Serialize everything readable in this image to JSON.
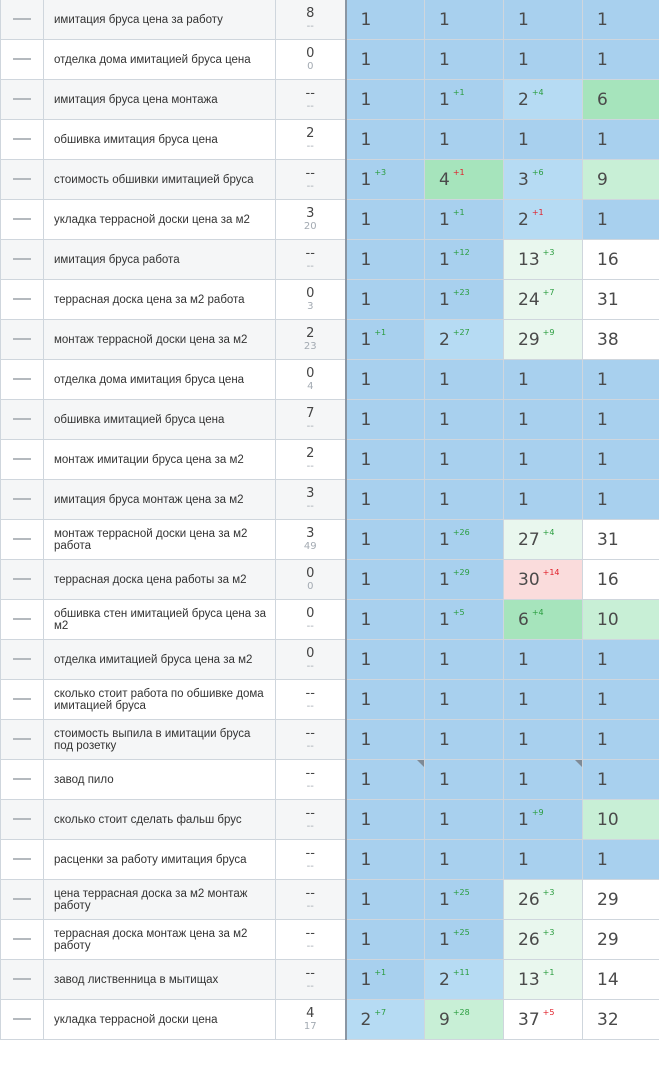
{
  "colors": {
    "top1": "#a8d0ee",
    "top3": "#b6dbf3",
    "top10": "#a6e4bc",
    "top10_light": "#c8efd6",
    "top30": "#e9f7ee",
    "worse": "#fadcdc",
    "none": "#ffffff"
  },
  "rows": [
    {
      "keyword": "имитация бруса цена за работу",
      "freq": "8",
      "freq2": "--",
      "positions": [
        {
          "v": "1",
          "d": "",
          "dir": "",
          "c": "top1"
        },
        {
          "v": "1",
          "d": "",
          "dir": "",
          "c": "top1"
        },
        {
          "v": "1",
          "d": "",
          "dir": "",
          "c": "top1"
        },
        {
          "v": "1",
          "d": "",
          "dir": "",
          "c": "top1"
        }
      ]
    },
    {
      "keyword": "отделка дома имитацией бруса цена",
      "freq": "0",
      "freq2": "0",
      "positions": [
        {
          "v": "1",
          "d": "",
          "dir": "",
          "c": "top1"
        },
        {
          "v": "1",
          "d": "",
          "dir": "",
          "c": "top1"
        },
        {
          "v": "1",
          "d": "",
          "dir": "",
          "c": "top1"
        },
        {
          "v": "1",
          "d": "",
          "dir": "",
          "c": "top1"
        }
      ]
    },
    {
      "keyword": "имитация бруса цена монтажа",
      "freq": "--",
      "freq2": "--",
      "positions": [
        {
          "v": "1",
          "d": "",
          "dir": "",
          "c": "top1"
        },
        {
          "v": "1",
          "d": "+1",
          "dir": "up",
          "c": "top1"
        },
        {
          "v": "2",
          "d": "+4",
          "dir": "up",
          "c": "top3"
        },
        {
          "v": "6",
          "d": "",
          "dir": "",
          "c": "top10"
        }
      ]
    },
    {
      "keyword": "обшивка имитация бруса цена",
      "freq": "2",
      "freq2": "--",
      "positions": [
        {
          "v": "1",
          "d": "",
          "dir": "",
          "c": "top1"
        },
        {
          "v": "1",
          "d": "",
          "dir": "",
          "c": "top1"
        },
        {
          "v": "1",
          "d": "",
          "dir": "",
          "c": "top1"
        },
        {
          "v": "1",
          "d": "",
          "dir": "",
          "c": "top1"
        }
      ]
    },
    {
      "keyword": "стоимость обшивки имитацией бруса",
      "freq": "--",
      "freq2": "--",
      "positions": [
        {
          "v": "1",
          "d": "+3",
          "dir": "up",
          "c": "top1"
        },
        {
          "v": "4",
          "d": "+1",
          "dir": "down",
          "c": "top10"
        },
        {
          "v": "3",
          "d": "+6",
          "dir": "up",
          "c": "top3"
        },
        {
          "v": "9",
          "d": "",
          "dir": "",
          "c": "top10_light"
        }
      ]
    },
    {
      "keyword": "укладка террасной доски цена за м2",
      "freq": "3",
      "freq2": "20",
      "positions": [
        {
          "v": "1",
          "d": "",
          "dir": "",
          "c": "top1"
        },
        {
          "v": "1",
          "d": "+1",
          "dir": "up",
          "c": "top1"
        },
        {
          "v": "2",
          "d": "+1",
          "dir": "down",
          "c": "top3"
        },
        {
          "v": "1",
          "d": "",
          "dir": "",
          "c": "top1"
        }
      ]
    },
    {
      "keyword": "имитация бруса работа",
      "freq": "--",
      "freq2": "--",
      "positions": [
        {
          "v": "1",
          "d": "",
          "dir": "",
          "c": "top1"
        },
        {
          "v": "1",
          "d": "+12",
          "dir": "up",
          "c": "top1"
        },
        {
          "v": "13",
          "d": "+3",
          "dir": "up",
          "c": "top30"
        },
        {
          "v": "16",
          "d": "",
          "dir": "",
          "c": "none"
        }
      ]
    },
    {
      "keyword": "террасная доска цена за м2 работа",
      "freq": "0",
      "freq2": "3",
      "positions": [
        {
          "v": "1",
          "d": "",
          "dir": "",
          "c": "top1"
        },
        {
          "v": "1",
          "d": "+23",
          "dir": "up",
          "c": "top1"
        },
        {
          "v": "24",
          "d": "+7",
          "dir": "up",
          "c": "top30"
        },
        {
          "v": "31",
          "d": "",
          "dir": "",
          "c": "none"
        }
      ]
    },
    {
      "keyword": "монтаж террасной доски цена за м2",
      "freq": "2",
      "freq2": "23",
      "positions": [
        {
          "v": "1",
          "d": "+1",
          "dir": "up",
          "c": "top1"
        },
        {
          "v": "2",
          "d": "+27",
          "dir": "up",
          "c": "top3"
        },
        {
          "v": "29",
          "d": "+9",
          "dir": "up",
          "c": "top30"
        },
        {
          "v": "38",
          "d": "",
          "dir": "",
          "c": "none"
        }
      ]
    },
    {
      "keyword": "отделка дома имитация бруса цена",
      "freq": "0",
      "freq2": "4",
      "positions": [
        {
          "v": "1",
          "d": "",
          "dir": "",
          "c": "top1"
        },
        {
          "v": "1",
          "d": "",
          "dir": "",
          "c": "top1"
        },
        {
          "v": "1",
          "d": "",
          "dir": "",
          "c": "top1"
        },
        {
          "v": "1",
          "d": "",
          "dir": "",
          "c": "top1"
        }
      ]
    },
    {
      "keyword": "обшивка имитацией бруса цена",
      "freq": "7",
      "freq2": "--",
      "positions": [
        {
          "v": "1",
          "d": "",
          "dir": "",
          "c": "top1"
        },
        {
          "v": "1",
          "d": "",
          "dir": "",
          "c": "top1"
        },
        {
          "v": "1",
          "d": "",
          "dir": "",
          "c": "top1"
        },
        {
          "v": "1",
          "d": "",
          "dir": "",
          "c": "top1"
        }
      ]
    },
    {
      "keyword": "монтаж имитации бруса цена за м2",
      "freq": "2",
      "freq2": "--",
      "positions": [
        {
          "v": "1",
          "d": "",
          "dir": "",
          "c": "top1"
        },
        {
          "v": "1",
          "d": "",
          "dir": "",
          "c": "top1"
        },
        {
          "v": "1",
          "d": "",
          "dir": "",
          "c": "top1"
        },
        {
          "v": "1",
          "d": "",
          "dir": "",
          "c": "top1"
        }
      ]
    },
    {
      "keyword": "имитация бруса монтаж цена за м2",
      "freq": "3",
      "freq2": "--",
      "positions": [
        {
          "v": "1",
          "d": "",
          "dir": "",
          "c": "top1"
        },
        {
          "v": "1",
          "d": "",
          "dir": "",
          "c": "top1"
        },
        {
          "v": "1",
          "d": "",
          "dir": "",
          "c": "top1"
        },
        {
          "v": "1",
          "d": "",
          "dir": "",
          "c": "top1"
        }
      ]
    },
    {
      "keyword": "монтаж террасной доски цена за м2 работа",
      "freq": "3",
      "freq2": "49",
      "positions": [
        {
          "v": "1",
          "d": "",
          "dir": "",
          "c": "top1"
        },
        {
          "v": "1",
          "d": "+26",
          "dir": "up",
          "c": "top1"
        },
        {
          "v": "27",
          "d": "+4",
          "dir": "up",
          "c": "top30"
        },
        {
          "v": "31",
          "d": "",
          "dir": "",
          "c": "none"
        }
      ]
    },
    {
      "keyword": "террасная доска цена работы за м2",
      "freq": "0",
      "freq2": "0",
      "positions": [
        {
          "v": "1",
          "d": "",
          "dir": "",
          "c": "top1"
        },
        {
          "v": "1",
          "d": "+29",
          "dir": "up",
          "c": "top1"
        },
        {
          "v": "30",
          "d": "+14",
          "dir": "down",
          "c": "worse"
        },
        {
          "v": "16",
          "d": "",
          "dir": "",
          "c": "none"
        }
      ]
    },
    {
      "keyword": "обшивка стен имитацией бруса цена за м2",
      "freq": "0",
      "freq2": "--",
      "positions": [
        {
          "v": "1",
          "d": "",
          "dir": "",
          "c": "top1"
        },
        {
          "v": "1",
          "d": "+5",
          "dir": "up",
          "c": "top1"
        },
        {
          "v": "6",
          "d": "+4",
          "dir": "up",
          "c": "top10"
        },
        {
          "v": "10",
          "d": "",
          "dir": "",
          "c": "top10_light"
        }
      ]
    },
    {
      "keyword": "отделка имитацией бруса цена за м2",
      "freq": "0",
      "freq2": "--",
      "positions": [
        {
          "v": "1",
          "d": "",
          "dir": "",
          "c": "top1"
        },
        {
          "v": "1",
          "d": "",
          "dir": "",
          "c": "top1"
        },
        {
          "v": "1",
          "d": "",
          "dir": "",
          "c": "top1"
        },
        {
          "v": "1",
          "d": "",
          "dir": "",
          "c": "top1"
        }
      ]
    },
    {
      "keyword": "сколько стоит работа по обшивке дома имитацией бруса",
      "freq": "--",
      "freq2": "--",
      "positions": [
        {
          "v": "1",
          "d": "",
          "dir": "",
          "c": "top1"
        },
        {
          "v": "1",
          "d": "",
          "dir": "",
          "c": "top1"
        },
        {
          "v": "1",
          "d": "",
          "dir": "",
          "c": "top1"
        },
        {
          "v": "1",
          "d": "",
          "dir": "",
          "c": "top1"
        }
      ]
    },
    {
      "keyword": "стоимость выпила в имитации бруса под розетку",
      "freq": "--",
      "freq2": "--",
      "positions": [
        {
          "v": "1",
          "d": "",
          "dir": "",
          "c": "top1"
        },
        {
          "v": "1",
          "d": "",
          "dir": "",
          "c": "top1"
        },
        {
          "v": "1",
          "d": "",
          "dir": "",
          "c": "top1"
        },
        {
          "v": "1",
          "d": "",
          "dir": "",
          "c": "top1"
        }
      ]
    },
    {
      "keyword": "завод пило",
      "freq": "--",
      "freq2": "--",
      "positions": [
        {
          "v": "1",
          "d": "",
          "dir": "",
          "c": "top1",
          "corner": true
        },
        {
          "v": "1",
          "d": "",
          "dir": "",
          "c": "top1"
        },
        {
          "v": "1",
          "d": "",
          "dir": "",
          "c": "top1",
          "corner": true
        },
        {
          "v": "1",
          "d": "",
          "dir": "",
          "c": "top1"
        }
      ]
    },
    {
      "keyword": "сколько стоит сделать фальш брус",
      "freq": "--",
      "freq2": "--",
      "positions": [
        {
          "v": "1",
          "d": "",
          "dir": "",
          "c": "top1"
        },
        {
          "v": "1",
          "d": "",
          "dir": "",
          "c": "top1"
        },
        {
          "v": "1",
          "d": "+9",
          "dir": "up",
          "c": "top1"
        },
        {
          "v": "10",
          "d": "",
          "dir": "",
          "c": "top10_light"
        }
      ]
    },
    {
      "keyword": "расценки за работу имитация бруса",
      "freq": "--",
      "freq2": "--",
      "positions": [
        {
          "v": "1",
          "d": "",
          "dir": "",
          "c": "top1"
        },
        {
          "v": "1",
          "d": "",
          "dir": "",
          "c": "top1"
        },
        {
          "v": "1",
          "d": "",
          "dir": "",
          "c": "top1"
        },
        {
          "v": "1",
          "d": "",
          "dir": "",
          "c": "top1"
        }
      ]
    },
    {
      "keyword": "цена террасная доска за м2 монтаж работу",
      "freq": "--",
      "freq2": "--",
      "positions": [
        {
          "v": "1",
          "d": "",
          "dir": "",
          "c": "top1"
        },
        {
          "v": "1",
          "d": "+25",
          "dir": "up",
          "c": "top1"
        },
        {
          "v": "26",
          "d": "+3",
          "dir": "up",
          "c": "top30"
        },
        {
          "v": "29",
          "d": "",
          "dir": "",
          "c": "none"
        }
      ]
    },
    {
      "keyword": "террасная доска монтаж цена за м2 работу",
      "freq": "--",
      "freq2": "--",
      "positions": [
        {
          "v": "1",
          "d": "",
          "dir": "",
          "c": "top1"
        },
        {
          "v": "1",
          "d": "+25",
          "dir": "up",
          "c": "top1"
        },
        {
          "v": "26",
          "d": "+3",
          "dir": "up",
          "c": "top30"
        },
        {
          "v": "29",
          "d": "",
          "dir": "",
          "c": "none"
        }
      ]
    },
    {
      "keyword": "завод лиственница в мытищах",
      "freq": "--",
      "freq2": "--",
      "positions": [
        {
          "v": "1",
          "d": "+1",
          "dir": "up",
          "c": "top1"
        },
        {
          "v": "2",
          "d": "+11",
          "dir": "up",
          "c": "top3"
        },
        {
          "v": "13",
          "d": "+1",
          "dir": "up",
          "c": "top30"
        },
        {
          "v": "14",
          "d": "",
          "dir": "",
          "c": "none"
        }
      ]
    },
    {
      "keyword": "укладка террасной доски цена",
      "freq": "4",
      "freq2": "17",
      "positions": [
        {
          "v": "2",
          "d": "+7",
          "dir": "up",
          "c": "top3"
        },
        {
          "v": "9",
          "d": "+28",
          "dir": "up",
          "c": "top10_light"
        },
        {
          "v": "37",
          "d": "+5",
          "dir": "down",
          "c": "none"
        },
        {
          "v": "32",
          "d": "",
          "dir": "",
          "c": "none"
        }
      ]
    }
  ]
}
